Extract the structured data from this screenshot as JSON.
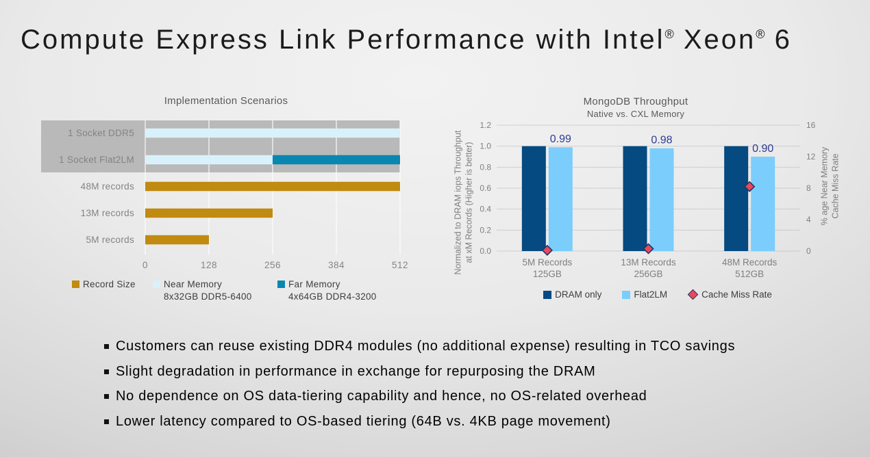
{
  "slide": {
    "title": "Compute Express Link Performance with Intel® Xeon® 6",
    "bullets": [
      "Customers can reuse existing DDR4 modules (no additional expense) resulting in TCO savings",
      "Slight degradation in performance in exchange for repurposing the DRAM",
      "No dependence on OS data-tiering capability and hence, no OS-related overhead",
      "Lower latency compared to OS-based tiering (64B vs. 4KB page movement)"
    ]
  },
  "chart_data": [
    {
      "type": "bar",
      "orientation": "horizontal",
      "title": "Implementation Scenarios",
      "categories": [
        "1 Socket DDR5",
        "1 Socket Flat2LM",
        "48M records",
        "13M records",
        "5M records"
      ],
      "series": [
        {
          "name": "Record Size",
          "color": "#c18a10",
          "values": [
            0,
            0,
            512,
            256,
            128
          ]
        },
        {
          "name": "Near Memory",
          "subtitle": "8x32GB DDR5-6400",
          "color": "#d9f1fb",
          "values": [
            512,
            256,
            0,
            0,
            0
          ]
        },
        {
          "name": "Far Memory",
          "subtitle": "4x64GB DDR4-3200",
          "color": "#0a87b0",
          "values": [
            0,
            256,
            0,
            0,
            0
          ]
        }
      ],
      "stacked": true,
      "xlim": [
        0,
        512
      ],
      "xticks": [
        0,
        128,
        256,
        384,
        512
      ],
      "highlight_band_rows": [
        0,
        1
      ],
      "band_color": "#b9b9b9",
      "grid": true,
      "legend_position": "bottom"
    },
    {
      "type": "bar",
      "orientation": "vertical",
      "title": "MongoDB Throughput",
      "subtitle": "Native vs. CXL Memory",
      "categories": [
        [
          "5M Records",
          "125GB"
        ],
        [
          "13M Records",
          "256GB"
        ],
        [
          "48M Records",
          "512GB"
        ]
      ],
      "series": [
        {
          "name": "DRAM only",
          "color": "#054a81",
          "values": [
            1.0,
            1.0,
            1.0
          ]
        },
        {
          "name": "Flat2LM",
          "color": "#7bcdfc",
          "values": [
            0.99,
            0.98,
            0.9
          ],
          "data_labels": [
            "0.99",
            "0.98",
            "0.90"
          ]
        }
      ],
      "scatter": {
        "name": "Cache Miss Rate",
        "marker": "diamond",
        "fill": "#e8495c",
        "stroke": "#1f3864",
        "axis": "right",
        "values": [
          0.1,
          0.3,
          8.2
        ]
      },
      "y_left": {
        "label": [
          "Normalized to DRAM iops Throughput",
          "at xM Records (Higher is better)"
        ],
        "min": 0,
        "max": 1.2,
        "ticks": [
          "0.0",
          "0.2",
          "0.4",
          "0.6",
          "0.8",
          "1.0",
          "1.2"
        ]
      },
      "y_right": {
        "label": [
          "% age Near Memory",
          "Cache Miss Rate"
        ],
        "min": 0,
        "max": 16,
        "ticks": [
          "0",
          "4",
          "8",
          "12",
          "16"
        ]
      },
      "data_label_color": "#2e3a94",
      "grid": true,
      "legend_position": "bottom"
    }
  ]
}
